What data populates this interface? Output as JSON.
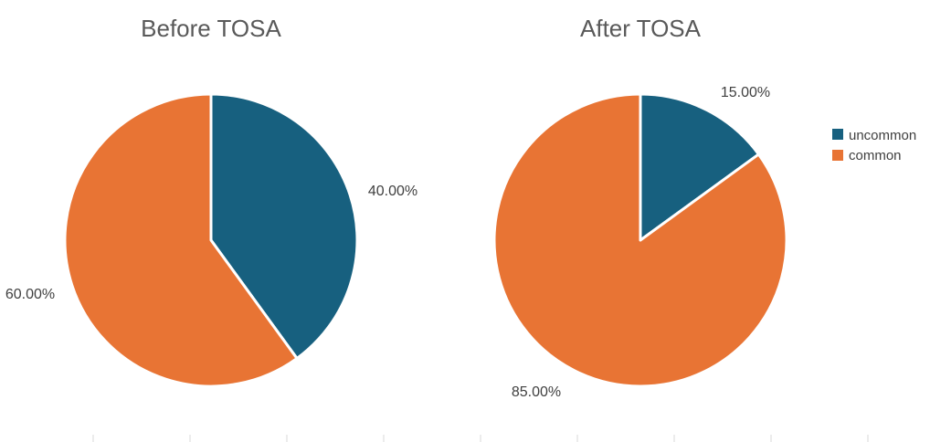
{
  "colors": {
    "uncommon": "#17607f",
    "common": "#e87434",
    "slice_border": "#ffffff"
  },
  "legend": {
    "placement": "right",
    "items": [
      {
        "label": "uncommon",
        "color_key": "uncommon"
      },
      {
        "label": "common",
        "color_key": "common"
      }
    ]
  },
  "chart_data": [
    {
      "type": "pie",
      "title": "Before TOSA",
      "categories": [
        "uncommon",
        "common"
      ],
      "values": [
        40,
        60
      ],
      "data_labels": [
        "40.00%",
        "60.00%"
      ]
    },
    {
      "type": "pie",
      "title": "After TOSA",
      "categories": [
        "uncommon",
        "common"
      ],
      "values": [
        15,
        85
      ],
      "data_labels": [
        "15.00%",
        "85.00%"
      ]
    }
  ]
}
